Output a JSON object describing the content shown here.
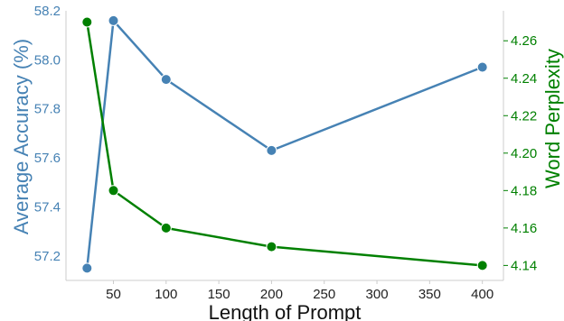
{
  "chart_data": {
    "type": "line",
    "xlabel": "Length of Prompt",
    "x_ticks": [
      50,
      100,
      150,
      200,
      250,
      300,
      350,
      400
    ],
    "xlim": [
      5,
      420
    ],
    "y_left": {
      "label": "Average Accuracy (%)",
      "ticks": [
        "57.2",
        "57.4",
        "57.6",
        "57.8",
        "58.0",
        "58.2"
      ],
      "lim": [
        57.1,
        58.2
      ]
    },
    "y_right": {
      "label": "Word Perplexity",
      "ticks": [
        "4.14",
        "4.16",
        "4.18",
        "4.20",
        "4.22",
        "4.24",
        "4.26"
      ],
      "lim": [
        4.132,
        4.276
      ]
    },
    "series": [
      {
        "axis": "left",
        "color": "#4682b4",
        "x": [
          25,
          50,
          100,
          200,
          400
        ],
        "values": [
          57.15,
          58.16,
          57.92,
          57.63,
          57.97
        ]
      },
      {
        "axis": "right",
        "color": "#008000",
        "x": [
          25,
          50,
          100,
          200,
          400
        ],
        "values": [
          4.27,
          4.18,
          4.16,
          4.15,
          4.14
        ]
      }
    ],
    "grid": false,
    "legend": "none"
  }
}
